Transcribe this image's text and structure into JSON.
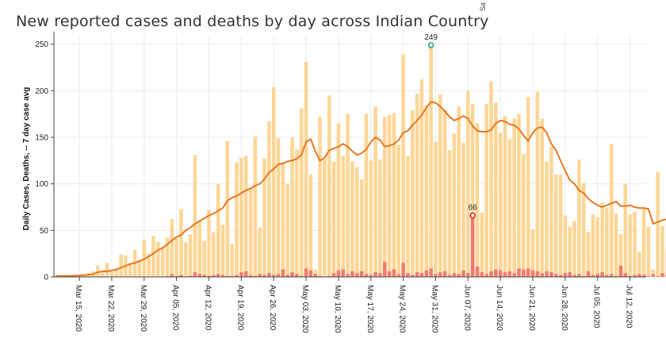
{
  "title": "New reported cases and deaths by day across Indian Country",
  "corner_text": "Sa",
  "colors": {
    "cases_bar": "#fdd696",
    "deaths_bar": "#f47a6a",
    "avg_line": "#e87722",
    "peak_case_marker": "#2aa38a",
    "peak_death_marker": "#e0201a",
    "grid": "#ececec"
  },
  "chart_data": {
    "type": "bar",
    "start_date": "2020-03-10",
    "end_date": "2020-07-15",
    "ylabel": "Daily Cases, Deaths, -- 7 day case avg",
    "ylim": [
      0,
      260
    ],
    "yticks": [
      0,
      50,
      100,
      150,
      200,
      250
    ],
    "grid": true,
    "x_tick_labels": [
      "Mar 15, 2020",
      "Mar 22, 2020",
      "Mar 29, 2020",
      "Apr 05, 2020",
      "Apr 12, 2020",
      "Apr 19, 2020",
      "Apr 26, 2020",
      "May 03, 2020",
      "May 10, 2020",
      "May 17, 2020",
      "May 24, 2020",
      "May 31, 2020",
      "Jun 07, 2020",
      "Jun 14, 2020",
      "Jun 21, 2020",
      "Jun 28, 2020",
      "Jul 05, 2020",
      "Jul 12, 2020"
    ],
    "cases": [
      2,
      1,
      1,
      2,
      3,
      1,
      2,
      4,
      6,
      12,
      7,
      15,
      6,
      9,
      24,
      23,
      15,
      29,
      18,
      40,
      25,
      44,
      38,
      32,
      42,
      62,
      43,
      73,
      37,
      46,
      131,
      61,
      39,
      72,
      48,
      100,
      56,
      146,
      35,
      123,
      128,
      130,
      95,
      151,
      53,
      127,
      167,
      204,
      149,
      122,
      100,
      150,
      137,
      181,
      231,
      110,
      8,
      172,
      127,
      195,
      124,
      165,
      130,
      175,
      124,
      118,
      105,
      175,
      125,
      183,
      126,
      172,
      174,
      176,
      142,
      239,
      130,
      179,
      197,
      212,
      185,
      249,
      145,
      196,
      180,
      136,
      154,
      183,
      144,
      200,
      186,
      165,
      69,
      186,
      210,
      187,
      155,
      173,
      148,
      170,
      175,
      132,
      193,
      51,
      199,
      170,
      124,
      140,
      110,
      110,
      66,
      54,
      60,
      126,
      101,
      48,
      67,
      64,
      80,
      74,
      143,
      68,
      46,
      100,
      67,
      70,
      27,
      75,
      54,
      8,
      113,
      55,
      31,
      52,
      60,
      66,
      55,
      65,
      98,
      62,
      48
    ],
    "deaths": [
      0,
      0,
      0,
      0,
      0,
      0,
      0,
      0,
      0,
      0,
      0,
      0,
      0,
      0,
      0,
      0,
      0,
      0,
      0,
      0,
      0,
      0,
      0,
      0,
      1,
      3,
      1,
      2,
      0,
      1,
      5,
      3,
      2,
      1,
      2,
      3,
      2,
      1,
      1,
      2,
      5,
      6,
      2,
      1,
      3,
      2,
      4,
      2,
      3,
      8,
      2,
      5,
      3,
      1,
      9,
      7,
      3,
      1,
      0,
      1,
      4,
      7,
      8,
      3,
      6,
      4,
      6,
      3,
      2,
      5,
      4,
      16,
      6,
      8,
      3,
      15,
      4,
      2,
      5,
      4,
      7,
      9,
      3,
      5,
      6,
      2,
      4,
      3,
      7,
      4,
      66,
      11,
      5,
      3,
      6,
      8,
      7,
      5,
      6,
      4,
      9,
      8,
      9,
      7,
      6,
      4,
      6,
      5,
      3,
      2,
      4,
      5,
      2,
      3,
      1,
      6,
      2,
      3,
      5,
      2,
      3,
      1,
      12,
      4,
      1,
      2,
      3,
      2,
      1,
      3,
      1,
      4,
      2,
      1,
      2,
      6,
      1,
      5,
      3,
      4,
      1
    ],
    "avg7": [
      1,
      1,
      1,
      1,
      1,
      1.5,
      2,
      2.5,
      3,
      5,
      6,
      6,
      7,
      8,
      10,
      12,
      14,
      15,
      17,
      19,
      22,
      25,
      29,
      31,
      35,
      39,
      43,
      45,
      50,
      53,
      57,
      60,
      63,
      66,
      68,
      71,
      74,
      82,
      85,
      87,
      90,
      93,
      95,
      98,
      100,
      105,
      112,
      116,
      121,
      122,
      124,
      125,
      127,
      131,
      145,
      148,
      135,
      125,
      128,
      136,
      138,
      140,
      143,
      140,
      135,
      131,
      133,
      137,
      145,
      150,
      147,
      140,
      141,
      143,
      147,
      155,
      157,
      163,
      168,
      174,
      182,
      188,
      187,
      183,
      178,
      172,
      168,
      170,
      173,
      170,
      162,
      157,
      156,
      156,
      158,
      165,
      168,
      167,
      164,
      163,
      159,
      152,
      146,
      155,
      160,
      161,
      155,
      143,
      136,
      125,
      114,
      104,
      100,
      93,
      90,
      84,
      80,
      77,
      75,
      77,
      79,
      81,
      76,
      76,
      77,
      75,
      74,
      74,
      73,
      57,
      59,
      61,
      62,
      56,
      60,
      63,
      61,
      60,
      62,
      57,
      53
    ],
    "annotations": [
      {
        "label": "249",
        "index": 81,
        "value": 249,
        "series": "cases"
      },
      {
        "label": "66",
        "index": 90,
        "value": 66,
        "series": "deaths"
      }
    ]
  }
}
